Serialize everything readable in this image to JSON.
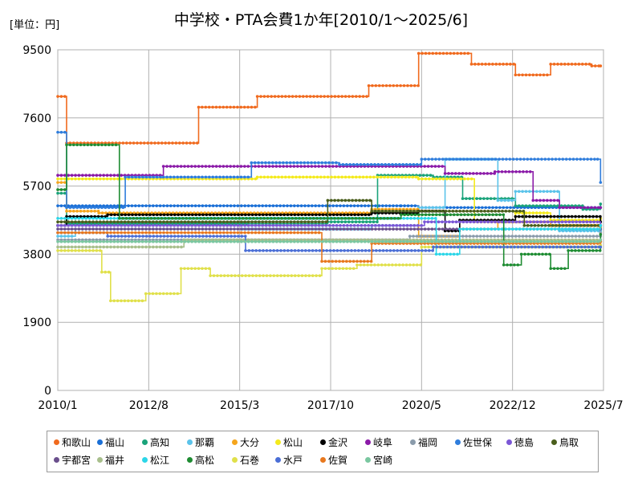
{
  "unit_label": "[単位：円]",
  "chart_data": {
    "type": "line",
    "title": "中学校・PTA会費1か年[2010/1～2025/6]",
    "xlabel": "",
    "ylabel": "",
    "x_ticks": [
      "2010/1",
      "2012/8",
      "2015/3",
      "2017/10",
      "2020/5",
      "2022/12",
      "2025/7"
    ],
    "y_ticks": [
      0,
      1900,
      3800,
      5700,
      7600,
      9500
    ],
    "ylim": [
      0,
      9500
    ],
    "xlim": [
      "2010/1",
      "2025/7"
    ],
    "grid": true,
    "legend_position": "bottom",
    "series": [
      {
        "name": "和歌山",
        "color": "#f06a1e",
        "points": [
          [
            "2010/1",
            8200
          ],
          [
            "2010/4",
            6900
          ],
          [
            "2014/1",
            7900
          ],
          [
            "2015/9",
            8200
          ],
          [
            "2018/11",
            8500
          ],
          [
            "2020/4",
            9400
          ],
          [
            "2021/10",
            9100
          ],
          [
            "2023/1",
            8800
          ],
          [
            "2024/1",
            9100
          ],
          [
            "2025/3",
            9050
          ],
          [
            "2025/6",
            9050
          ]
        ]
      },
      {
        "name": "福山",
        "color": "#1a6fd6",
        "points": [
          [
            "2010/1",
            5150
          ],
          [
            "2019/10",
            5150
          ],
          [
            "2020/4",
            5100
          ],
          [
            "2025/6",
            5100
          ]
        ]
      },
      {
        "name": "高知",
        "color": "#1aa37a",
        "points": [
          [
            "2010/1",
            5500
          ],
          [
            "2010/4",
            4650
          ],
          [
            "2015/6",
            4650
          ],
          [
            "2017/9",
            4700
          ],
          [
            "2019/2",
            6000
          ],
          [
            "2020/9",
            5950
          ],
          [
            "2021/7",
            5350
          ],
          [
            "2023/1",
            5150
          ],
          [
            "2024/12",
            5050
          ],
          [
            "2025/6",
            5200
          ]
        ]
      },
      {
        "name": "那覇",
        "color": "#5bc3ea",
        "points": [
          [
            "2010/1",
            4300
          ],
          [
            "2010/7",
            4500
          ],
          [
            "2015/4",
            4500
          ],
          [
            "2018/12",
            4600
          ],
          [
            "2020/4",
            5100
          ],
          [
            "2021/1",
            6450
          ],
          [
            "2022/7",
            5300
          ],
          [
            "2023/1",
            5550
          ],
          [
            "2024/1",
            5550
          ],
          [
            "2024/4",
            4450
          ],
          [
            "2025/6",
            4450
          ]
        ]
      },
      {
        "name": "大分",
        "color": "#f5a51c",
        "points": [
          [
            "2010/1",
            5800
          ],
          [
            "2010/4",
            5000
          ],
          [
            "2011/3",
            4950
          ],
          [
            "2018/12",
            5050
          ],
          [
            "2020/4",
            4300
          ],
          [
            "2021/6",
            4500
          ],
          [
            "2022/7",
            4700
          ],
          [
            "2024/1",
            4600
          ],
          [
            "2025/6",
            4550
          ]
        ]
      },
      {
        "name": "松山",
        "color": "#f4ea1c",
        "points": [
          [
            "2010/1",
            5900
          ],
          [
            "2015/9",
            5950
          ],
          [
            "2020/4",
            5900
          ],
          [
            "2021/11",
            4700
          ],
          [
            "2023/1",
            4950
          ],
          [
            "2024/1",
            4750
          ],
          [
            "2025/6",
            4800
          ]
        ]
      },
      {
        "name": "金沢",
        "color": "#000000",
        "points": [
          [
            "2010/1",
            4600
          ],
          [
            "2010/4",
            4850
          ],
          [
            "2011/6",
            4900
          ],
          [
            "2018/12",
            4950
          ],
          [
            "2020/4",
            5000
          ],
          [
            "2021/1",
            4450
          ],
          [
            "2021/6",
            4750
          ],
          [
            "2023/1",
            4850
          ],
          [
            "2025/6",
            4700
          ]
        ]
      },
      {
        "name": "岐阜",
        "color": "#8b1aa8",
        "points": [
          [
            "2010/1",
            6000
          ],
          [
            "2013/1",
            6250
          ],
          [
            "2021/1",
            6050
          ],
          [
            "2022/6",
            6100
          ],
          [
            "2023/7",
            5300
          ],
          [
            "2024/4",
            5100
          ],
          [
            "2025/6",
            5100
          ]
        ]
      },
      {
        "name": "福岡",
        "color": "#8a9bab",
        "points": [
          [
            "2010/1",
            4200
          ],
          [
            "2020/1",
            4300
          ],
          [
            "2025/6",
            4400
          ]
        ]
      },
      {
        "name": "佐世保",
        "color": "#2f7ddc",
        "points": [
          [
            "2010/1",
            7200
          ],
          [
            "2010/4",
            5100
          ],
          [
            "2011/12",
            5950
          ],
          [
            "2013/1",
            5950
          ],
          [
            "2015/7",
            6350
          ],
          [
            "2018/1",
            6300
          ],
          [
            "2020/5",
            6450
          ],
          [
            "2025/5",
            6450
          ],
          [
            "2025/6",
            5800
          ]
        ]
      },
      {
        "name": "徳島",
        "color": "#7b57d6",
        "points": [
          [
            "2010/1",
            4600
          ],
          [
            "2020/6",
            4700
          ],
          [
            "2025/6",
            4600
          ]
        ]
      },
      {
        "name": "鳥取",
        "color": "#4a5e1c",
        "points": [
          [
            "2010/1",
            4700
          ],
          [
            "2017/9",
            5300
          ],
          [
            "2018/12",
            5000
          ],
          [
            "2023/4",
            4600
          ],
          [
            "2025/6",
            4600
          ]
        ]
      },
      {
        "name": "宇都宮",
        "color": "#6a4f8c",
        "points": [
          [
            "2010/1",
            4500
          ],
          [
            "2021/6",
            4500
          ],
          [
            "2025/6",
            4500
          ]
        ]
      },
      {
        "name": "福井",
        "color": "#a8bf8c",
        "points": [
          [
            "2010/1",
            4000
          ],
          [
            "2013/8",
            4200
          ],
          [
            "2025/6",
            4150
          ]
        ]
      },
      {
        "name": "松江",
        "color": "#2cd6e8",
        "points": [
          [
            "2010/1",
            4800
          ],
          [
            "2020/10",
            3800
          ],
          [
            "2021/6",
            4500
          ],
          [
            "2025/6",
            4600
          ]
        ]
      },
      {
        "name": "高松",
        "color": "#1e8c32",
        "points": [
          [
            "2010/1",
            5600
          ],
          [
            "2010/4",
            6850
          ],
          [
            "2011/10",
            4800
          ],
          [
            "2019/10",
            4900
          ],
          [
            "2022/9",
            3500
          ],
          [
            "2023/3",
            3800
          ],
          [
            "2024/1",
            3400
          ],
          [
            "2024/7",
            3900
          ],
          [
            "2025/6",
            4350
          ]
        ]
      },
      {
        "name": "石巻",
        "color": "#e0e04a",
        "points": [
          [
            "2010/1",
            3900
          ],
          [
            "2011/4",
            3300
          ],
          [
            "2011/7",
            2500
          ],
          [
            "2012/7",
            2700
          ],
          [
            "2013/7",
            3400
          ],
          [
            "2014/5",
            3200
          ],
          [
            "2017/7",
            3400
          ],
          [
            "2018/7",
            3500
          ],
          [
            "2020/5",
            4000
          ],
          [
            "2025/6",
            4050
          ]
        ]
      },
      {
        "name": "水戸",
        "color": "#4a6ed6",
        "points": [
          [
            "2010/1",
            4400
          ],
          [
            "2011/6",
            4300
          ],
          [
            "2015/5",
            3900
          ],
          [
            "2020/9",
            4000
          ],
          [
            "2025/6",
            4000
          ]
        ]
      },
      {
        "name": "佐賀",
        "color": "#e8781e",
        "points": [
          [
            "2010/1",
            4400
          ],
          [
            "2017/7",
            3600
          ],
          [
            "2018/12",
            4100
          ],
          [
            "2025/6",
            4150
          ]
        ]
      },
      {
        "name": "宮崎",
        "color": "#7ac7a0",
        "points": [
          [
            "2010/1",
            4150
          ],
          [
            "2025/6",
            4200
          ]
        ]
      }
    ]
  }
}
